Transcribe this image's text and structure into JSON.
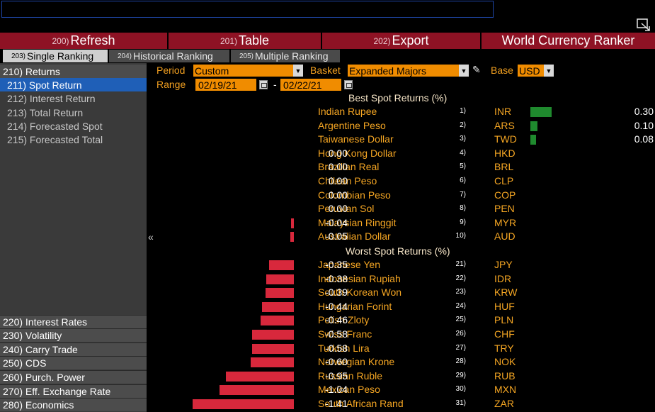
{
  "command_line": {
    "value": ""
  },
  "toolbar": {
    "buttons": [
      {
        "num": "200)",
        "label": "Refresh"
      },
      {
        "num": "201)",
        "label": "Table"
      },
      {
        "num": "202)",
        "label": "Export"
      }
    ],
    "title": "World Currency Ranker"
  },
  "tabs": [
    {
      "num": "203)",
      "label": "Single Ranking"
    },
    {
      "num": "204)",
      "label": "Historical Ranking"
    },
    {
      "num": "205)",
      "label": "Multiple Ranking"
    }
  ],
  "sidebar": {
    "returns_head": "210) Returns",
    "returns_items": [
      "211) Spot Return",
      "212) Interest Return",
      "213) Total Return",
      "214) Forecasted Spot",
      "215) Forecasted Total"
    ],
    "bottom_items": [
      "220) Interest Rates",
      "230) Volatility",
      "240) Carry Trade",
      "250) CDS",
      "260) Purch. Power",
      "270) Eff. Exchange Rate",
      "280) Economics"
    ]
  },
  "controls": {
    "period_label": "Period",
    "period_value": "Custom",
    "basket_label": "Basket",
    "basket_value": "Expanded Majors",
    "base_label": "Base",
    "base_value": "USD",
    "range_label": "Range",
    "range_start": "02/19/21",
    "range_sep": "-",
    "range_end": "02/22/21"
  },
  "best_title": "Best Spot Returns (%)",
  "worst_title": "Worst Spot Returns (%)",
  "colors": {
    "positive": "#1f8a2e",
    "negative": "#d8283c",
    "accent": "#f5a623"
  },
  "chart_data": {
    "type": "bar",
    "unit": "%",
    "best": [
      {
        "rank": "1)",
        "name": "Indian Rupee",
        "code": "INR",
        "value": 0.3,
        "label": "0.30"
      },
      {
        "rank": "2)",
        "name": "Argentine Peso",
        "code": "ARS",
        "value": 0.1,
        "label": "0.10"
      },
      {
        "rank": "3)",
        "name": "Taiwanese Dollar",
        "code": "TWD",
        "value": 0.08,
        "label": "0.08"
      },
      {
        "rank": "4)",
        "name": "Hong Kong Dollar",
        "code": "HKD",
        "value": 0.0,
        "label": "0.00"
      },
      {
        "rank": "5)",
        "name": "Brazilian Real",
        "code": "BRL",
        "value": 0.0,
        "label": "0.00"
      },
      {
        "rank": "6)",
        "name": "Chilean Peso",
        "code": "CLP",
        "value": 0.0,
        "label": "0.00"
      },
      {
        "rank": "7)",
        "name": "Colombian Peso",
        "code": "COP",
        "value": 0.0,
        "label": "0.00"
      },
      {
        "rank": "8)",
        "name": "Peruvian Sol",
        "code": "PEN",
        "value": 0.0,
        "label": "0.00"
      },
      {
        "rank": "9)",
        "name": "Malaysian Ringgit",
        "code": "MYR",
        "value": -0.04,
        "label": "-0.04"
      },
      {
        "rank": "10)",
        "name": "Australian Dollar",
        "code": "AUD",
        "value": -0.05,
        "label": "-0.05"
      }
    ],
    "worst": [
      {
        "rank": "21)",
        "name": "Japanese Yen",
        "code": "JPY",
        "value": -0.35,
        "label": "-0.35"
      },
      {
        "rank": "22)",
        "name": "Indonesian Rupiah",
        "code": "IDR",
        "value": -0.38,
        "label": "-0.38"
      },
      {
        "rank": "23)",
        "name": "South Korean Won",
        "code": "KRW",
        "value": -0.39,
        "label": "-0.39"
      },
      {
        "rank": "24)",
        "name": "Hungarian Forint",
        "code": "HUF",
        "value": -0.44,
        "label": "-0.44"
      },
      {
        "rank": "25)",
        "name": "Polish Zloty",
        "code": "PLN",
        "value": -0.46,
        "label": "-0.46"
      },
      {
        "rank": "26)",
        "name": "Swiss Franc",
        "code": "CHF",
        "value": -0.58,
        "label": "-0.58"
      },
      {
        "rank": "27)",
        "name": "Turkish Lira",
        "code": "TRY",
        "value": -0.58,
        "label": "-0.58"
      },
      {
        "rank": "28)",
        "name": "Norwegian Krone",
        "code": "NOK",
        "value": -0.6,
        "label": "-0.60"
      },
      {
        "rank": "29)",
        "name": "Russian Ruble",
        "code": "RUB",
        "value": -0.95,
        "label": "-0.95"
      },
      {
        "rank": "30)",
        "name": "Mexican Peso",
        "code": "MXN",
        "value": -1.04,
        "label": "-1.04"
      },
      {
        "rank": "31)",
        "name": "South African Rand",
        "code": "ZAR",
        "value": -1.41,
        "label": "-1.41"
      }
    ]
  }
}
